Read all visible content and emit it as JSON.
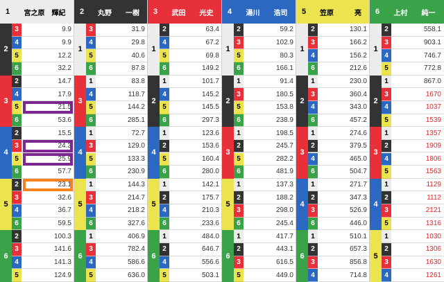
{
  "colors": {
    "1": "#ececec",
    "2": "#333333",
    "3": "#e8303b",
    "4": "#2a68c1",
    "5": "#ece44e",
    "6": "#3aa34a"
  },
  "highlight_colors": {
    "purple": "#7d2590",
    "orange": "#f5821f"
  },
  "columns": [
    {
      "lane": "1",
      "name": "宮之原　輝紀",
      "groups": [
        {
          "first": "2",
          "rows": [
            {
              "second": "3",
              "odds": "9.9"
            },
            {
              "second": "4",
              "odds": "9.9"
            },
            {
              "second": "5",
              "odds": "12.2"
            },
            {
              "second": "6",
              "odds": "32.2"
            }
          ]
        },
        {
          "first": "3",
          "rows": [
            {
              "second": "2",
              "odds": "14.7"
            },
            {
              "second": "4",
              "odds": "17.9"
            },
            {
              "second": "5",
              "odds": "21.5",
              "highlight": "purple"
            },
            {
              "second": "6",
              "odds": "53.6"
            }
          ]
        },
        {
          "first": "4",
          "rows": [
            {
              "second": "2",
              "odds": "15.5"
            },
            {
              "second": "3",
              "odds": "24.3",
              "highlight": "purple"
            },
            {
              "second": "5",
              "odds": "25.9",
              "highlight": "purple"
            },
            {
              "second": "6",
              "odds": "57.7"
            }
          ]
        },
        {
          "first": "5",
          "rows": [
            {
              "second": "2",
              "odds": "23.1",
              "highlight": "orange"
            },
            {
              "second": "3",
              "odds": "32.6"
            },
            {
              "second": "4",
              "odds": "36.7"
            },
            {
              "second": "6",
              "odds": "59.5"
            }
          ]
        },
        {
          "first": "6",
          "rows": [
            {
              "second": "2",
              "odds": "100.3"
            },
            {
              "second": "3",
              "odds": "141.6"
            },
            {
              "second": "4",
              "odds": "141.3"
            },
            {
              "second": "5",
              "odds": "124.9"
            }
          ]
        }
      ]
    },
    {
      "lane": "2",
      "name": "丸野　　一樹",
      "groups": [
        {
          "first": "1",
          "rows": [
            {
              "second": "3",
              "odds": "31.9"
            },
            {
              "second": "4",
              "odds": "29.8"
            },
            {
              "second": "5",
              "odds": "40.6"
            },
            {
              "second": "6",
              "odds": "87.8"
            }
          ]
        },
        {
          "first": "3",
          "rows": [
            {
              "second": "1",
              "odds": "83.8"
            },
            {
              "second": "4",
              "odds": "118.7"
            },
            {
              "second": "5",
              "odds": "144.2"
            },
            {
              "second": "6",
              "odds": "285.1"
            }
          ]
        },
        {
          "first": "4",
          "rows": [
            {
              "second": "1",
              "odds": "72.7"
            },
            {
              "second": "3",
              "odds": "129.0"
            },
            {
              "second": "5",
              "odds": "133.3"
            },
            {
              "second": "6",
              "odds": "230.9"
            }
          ]
        },
        {
          "first": "5",
          "rows": [
            {
              "second": "1",
              "odds": "144.3"
            },
            {
              "second": "3",
              "odds": "214.7"
            },
            {
              "second": "4",
              "odds": "218.2"
            },
            {
              "second": "6",
              "odds": "327.6"
            }
          ]
        },
        {
          "first": "6",
          "rows": [
            {
              "second": "1",
              "odds": "406.9"
            },
            {
              "second": "3",
              "odds": "782.4"
            },
            {
              "second": "4",
              "odds": "586.6"
            },
            {
              "second": "5",
              "odds": "636.0"
            }
          ]
        }
      ]
    },
    {
      "lane": "3",
      "name": "武田　　光史",
      "groups": [
        {
          "first": "1",
          "rows": [
            {
              "second": "2",
              "odds": "63.4"
            },
            {
              "second": "4",
              "odds": "67.2"
            },
            {
              "second": "5",
              "odds": "69.8"
            },
            {
              "second": "6",
              "odds": "149.2"
            }
          ]
        },
        {
          "first": "2",
          "rows": [
            {
              "second": "1",
              "odds": "101.7"
            },
            {
              "second": "4",
              "odds": "145.2"
            },
            {
              "second": "5",
              "odds": "145.5"
            },
            {
              "second": "6",
              "odds": "297.3"
            }
          ]
        },
        {
          "first": "4",
          "rows": [
            {
              "second": "1",
              "odds": "123.6"
            },
            {
              "second": "2",
              "odds": "153.6"
            },
            {
              "second": "5",
              "odds": "160.4"
            },
            {
              "second": "6",
              "odds": "280.0"
            }
          ]
        },
        {
          "first": "5",
          "rows": [
            {
              "second": "1",
              "odds": "142.1"
            },
            {
              "second": "2",
              "odds": "175.7"
            },
            {
              "second": "4",
              "odds": "210.3"
            },
            {
              "second": "6",
              "odds": "233.6"
            }
          ]
        },
        {
          "first": "6",
          "rows": [
            {
              "second": "1",
              "odds": "484.0"
            },
            {
              "second": "2",
              "odds": "646.7"
            },
            {
              "second": "4",
              "odds": "556.6"
            },
            {
              "second": "5",
              "odds": "503.1"
            }
          ]
        }
      ]
    },
    {
      "lane": "4",
      "name": "湯川　　浩司",
      "groups": [
        {
          "first": "1",
          "rows": [
            {
              "second": "2",
              "odds": "59.2"
            },
            {
              "second": "3",
              "odds": "102.9"
            },
            {
              "second": "5",
              "odds": "80.3"
            },
            {
              "second": "6",
              "odds": "166.1"
            }
          ]
        },
        {
          "first": "2",
          "rows": [
            {
              "second": "1",
              "odds": "91.4"
            },
            {
              "second": "3",
              "odds": "180.5"
            },
            {
              "second": "5",
              "odds": "153.8"
            },
            {
              "second": "6",
              "odds": "238.9"
            }
          ]
        },
        {
          "first": "3",
          "rows": [
            {
              "second": "1",
              "odds": "198.5"
            },
            {
              "second": "2",
              "odds": "245.7"
            },
            {
              "second": "5",
              "odds": "282.2"
            },
            {
              "second": "6",
              "odds": "481.9"
            }
          ]
        },
        {
          "first": "5",
          "rows": [
            {
              "second": "1",
              "odds": "137.3"
            },
            {
              "second": "2",
              "odds": "188.2"
            },
            {
              "second": "3",
              "odds": "298.0"
            },
            {
              "second": "6",
              "odds": "245.4"
            }
          ]
        },
        {
          "first": "6",
          "rows": [
            {
              "second": "1",
              "odds": "417.7"
            },
            {
              "second": "2",
              "odds": "443.1"
            },
            {
              "second": "3",
              "odds": "616.5"
            },
            {
              "second": "5",
              "odds": "449.0"
            }
          ]
        }
      ]
    },
    {
      "lane": "5",
      "name": "笠原　　　亮",
      "groups": [
        {
          "first": "1",
          "rows": [
            {
              "second": "2",
              "odds": "130.1"
            },
            {
              "second": "3",
              "odds": "166.2"
            },
            {
              "second": "4",
              "odds": "156.2"
            },
            {
              "second": "6",
              "odds": "212.6"
            }
          ]
        },
        {
          "first": "2",
          "rows": [
            {
              "second": "1",
              "odds": "230.0"
            },
            {
              "second": "3",
              "odds": "360.4"
            },
            {
              "second": "4",
              "odds": "343.0"
            },
            {
              "second": "6",
              "odds": "457.2"
            }
          ]
        },
        {
          "first": "3",
          "rows": [
            {
              "second": "1",
              "odds": "274.6"
            },
            {
              "second": "2",
              "odds": "379.5"
            },
            {
              "second": "4",
              "odds": "465.0"
            },
            {
              "second": "6",
              "odds": "504.7"
            }
          ]
        },
        {
          "first": "4",
          "rows": [
            {
              "second": "1",
              "odds": "271.7"
            },
            {
              "second": "2",
              "odds": "347.3"
            },
            {
              "second": "3",
              "odds": "526.9"
            },
            {
              "second": "6",
              "odds": "446.0"
            }
          ]
        },
        {
          "first": "6",
          "rows": [
            {
              "second": "1",
              "odds": "510.1"
            },
            {
              "second": "2",
              "odds": "657.3"
            },
            {
              "second": "3",
              "odds": "856.8"
            },
            {
              "second": "4",
              "odds": "714.8"
            }
          ]
        }
      ]
    },
    {
      "lane": "6",
      "name": "上村　　純一",
      "groups": [
        {
          "first": "1",
          "rows": [
            {
              "second": "2",
              "odds": "558.1"
            },
            {
              "second": "3",
              "odds": "903.1"
            },
            {
              "second": "4",
              "odds": "746.7"
            },
            {
              "second": "5",
              "odds": "772.8"
            }
          ]
        },
        {
          "first": "2",
          "rows": [
            {
              "second": "1",
              "odds": "867.0"
            },
            {
              "second": "3",
              "odds": "1670",
              "red": true
            },
            {
              "second": "4",
              "odds": "1037",
              "red": true
            },
            {
              "second": "5",
              "odds": "1539",
              "red": true
            }
          ]
        },
        {
          "first": "3",
          "rows": [
            {
              "second": "1",
              "odds": "1357",
              "red": true
            },
            {
              "second": "2",
              "odds": "1909",
              "red": true
            },
            {
              "second": "4",
              "odds": "1806",
              "red": true
            },
            {
              "second": "5",
              "odds": "1563",
              "red": true
            }
          ]
        },
        {
          "first": "4",
          "rows": [
            {
              "second": "1",
              "odds": "1129",
              "red": true
            },
            {
              "second": "2",
              "odds": "1112",
              "red": true
            },
            {
              "second": "3",
              "odds": "2121",
              "red": true
            },
            {
              "second": "5",
              "odds": "1316",
              "red": true
            }
          ]
        },
        {
          "first": "5",
          "rows": [
            {
              "second": "1",
              "odds": "1030",
              "red": true
            },
            {
              "second": "2",
              "odds": "1306",
              "red": true
            },
            {
              "second": "3",
              "odds": "1630",
              "red": true
            },
            {
              "second": "4",
              "odds": "1261",
              "red": true
            }
          ]
        }
      ]
    }
  ]
}
